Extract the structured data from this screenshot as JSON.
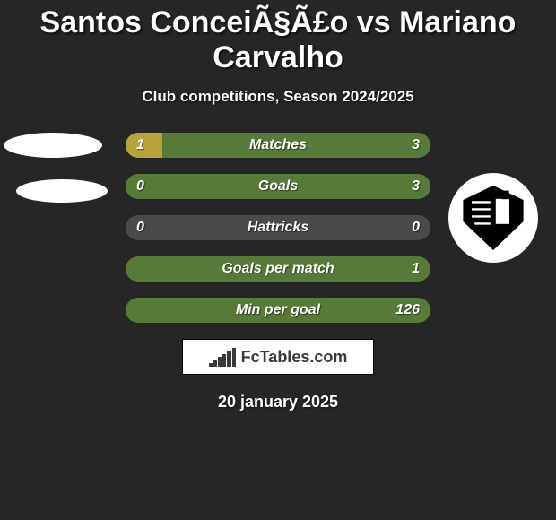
{
  "page": {
    "background_color": "#262626",
    "title": "Santos ConceiÃ§Ã£o vs Mariano Carvalho",
    "title_fontsize": 34,
    "subtitle": "Club competitions, Season 2024/2025",
    "subtitle_fontsize": 17,
    "date": "20 january 2025",
    "date_fontsize": 18
  },
  "bar_colors": {
    "left": "#b7a23b",
    "right_filled": "#587a39",
    "right_empty": "#4a4a4a"
  },
  "stats": [
    {
      "label": "Matches",
      "left_value": "1",
      "right_value": "3",
      "left_pct": 12,
      "right_fill": true
    },
    {
      "label": "Goals",
      "left_value": "0",
      "right_value": "3",
      "left_pct": 0,
      "right_fill": true
    },
    {
      "label": "Hattricks",
      "left_value": "0",
      "right_value": "0",
      "left_pct": 0,
      "right_fill": false
    },
    {
      "label": "Goals per match",
      "left_value": "",
      "right_value": "1",
      "left_pct": 0,
      "right_fill": true
    },
    {
      "label": "Min per goal",
      "left_value": "",
      "right_value": "126",
      "left_pct": 0,
      "right_fill": true
    }
  ],
  "logo": {
    "text": "FcTables.com"
  },
  "badge_colors": {
    "left_bg": "#ffffff",
    "right_bg": "#ffffff",
    "right_shape": "#000000"
  }
}
